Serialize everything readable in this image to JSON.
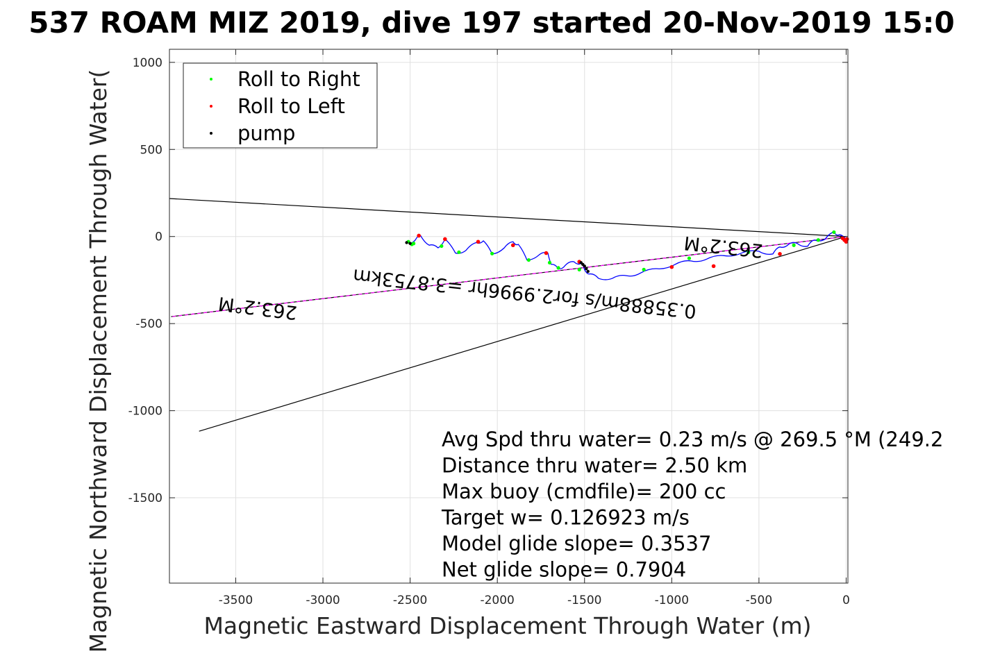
{
  "chart_data": {
    "type": "line",
    "title": "537 ROAM MIZ 2019, dive 197 started 20-Nov-2019 15:0",
    "xlabel": "Magnetic Eastward Displacement Through Water (m)",
    "ylabel": "Magnetic Northward Displacement Through Water(",
    "xlim": [
      -3880,
      10
    ],
    "ylim": [
      -1990,
      1075
    ],
    "x_ticks": [
      -3500,
      -3000,
      -2500,
      -2000,
      -1500,
      -1000,
      -500,
      0
    ],
    "y_ticks": [
      1000,
      500,
      0,
      -500,
      -1000,
      -1500
    ],
    "x_tick_labels": [
      "-3500",
      "-3000",
      "-2500",
      "-2000",
      "-1500",
      "-1000",
      "-500",
      "0"
    ],
    "y_tick_labels": [
      "1000",
      "500",
      "0",
      "-500",
      "-1000",
      "-1500"
    ],
    "grid": true,
    "legend": {
      "position": "top-left",
      "entries": [
        {
          "label": "Roll to Right",
          "color": "#00ff00"
        },
        {
          "label": "Roll to Left",
          "color": "#ff0000"
        },
        {
          "label": "pump",
          "color": "#000000"
        }
      ]
    },
    "boundary_lines": [
      {
        "x": [
          0,
          -3880
        ],
        "y": [
          0,
          218
        ],
        "color": "#000000"
      },
      {
        "x": [
          0,
          -3710
        ],
        "y": [
          0,
          -1118
        ],
        "color": "#000000"
      }
    ],
    "heading_line": {
      "x": [
        0,
        -3870
      ],
      "y": [
        0,
        -460
      ],
      "color": "#000000",
      "dash_color": "#ff00ff"
    },
    "track": {
      "color": "#0000ff",
      "x": [
        -2510,
        -2470,
        -2440,
        -2390,
        -2340,
        -2300,
        -2240,
        -2180,
        -2120,
        -2080,
        -2030,
        -1960,
        -1910,
        -1880,
        -1830,
        -1760,
        -1710,
        -1690,
        -1650,
        -1610,
        -1560,
        -1520,
        -1500,
        -1470,
        -1420,
        -1340,
        -1260,
        -1180,
        -1080,
        -980,
        -890,
        -800,
        -700,
        -600,
        -500,
        -420,
        -380,
        -330,
        -280,
        -220,
        -180,
        -120,
        -70,
        -40,
        0
      ],
      "y": [
        -35,
        -20,
        5,
        -50,
        -65,
        -15,
        -95,
        -80,
        -35,
        -25,
        -100,
        -65,
        -30,
        -45,
        -135,
        -105,
        -95,
        -160,
        -185,
        -165,
        -145,
        -155,
        -190,
        -215,
        -240,
        -240,
        -225,
        -210,
        -185,
        -160,
        -140,
        -130,
        -110,
        -95,
        -85,
        -100,
        -60,
        -45,
        -40,
        -55,
        -20,
        -15,
        25,
        10,
        -20
      ]
    },
    "roll_right_points": {
      "x": [
        -2510,
        -2490,
        -2480,
        -2320,
        -2220,
        -2030,
        -1820,
        -1700,
        -1650,
        -1530,
        -1160,
        -900,
        -560,
        -300,
        -160,
        -70
      ],
      "y": [
        -30,
        -45,
        -40,
        -55,
        -90,
        -98,
        -135,
        -150,
        -180,
        -190,
        -190,
        -125,
        -90,
        -50,
        -20,
        25
      ],
      "color": "#00ff00"
    },
    "roll_left_points": {
      "x": [
        -2450,
        -2300,
        -2110,
        -1910,
        -1720,
        -1530,
        -1000,
        -760,
        -380,
        -20,
        -10,
        0,
        5
      ],
      "y": [
        5,
        -15,
        -30,
        -50,
        -95,
        -145,
        -175,
        -170,
        -100,
        -10,
        -20,
        -30,
        -15
      ],
      "color": "#ff0000"
    },
    "pump_points": {
      "x": [
        -2520,
        -2500,
        -1520,
        -1510,
        -1500,
        -1490,
        -1480
      ],
      "y": [
        -35,
        -40,
        -150,
        -160,
        -170,
        -185,
        -200
      ],
      "color": "#000000"
    },
    "rotated_labels": [
      {
        "text": "263.2°M",
        "anchor_x": -3370,
        "anchor_y": -375,
        "rotation": 187
      },
      {
        "text": "263.2°M",
        "anchor_x": -700,
        "anchor_y": -23,
        "rotation": 186
      },
      {
        "text": "0.35888m/s for2.9996hr =3.8753km",
        "anchor_x": -1840,
        "anchor_y": -292,
        "rotation": 186
      }
    ],
    "annotations": [
      "Avg Spd thru water=  0.23 m/s @ 269.5 °M (249.2",
      "Distance thru water=  2.50 km",
      "Max buoy (cmdfile)= 200 cc",
      "Target w= 0.126923 m/s",
      "Model glide slope= 0.3537",
      "Net glide slope= 0.7904"
    ]
  }
}
